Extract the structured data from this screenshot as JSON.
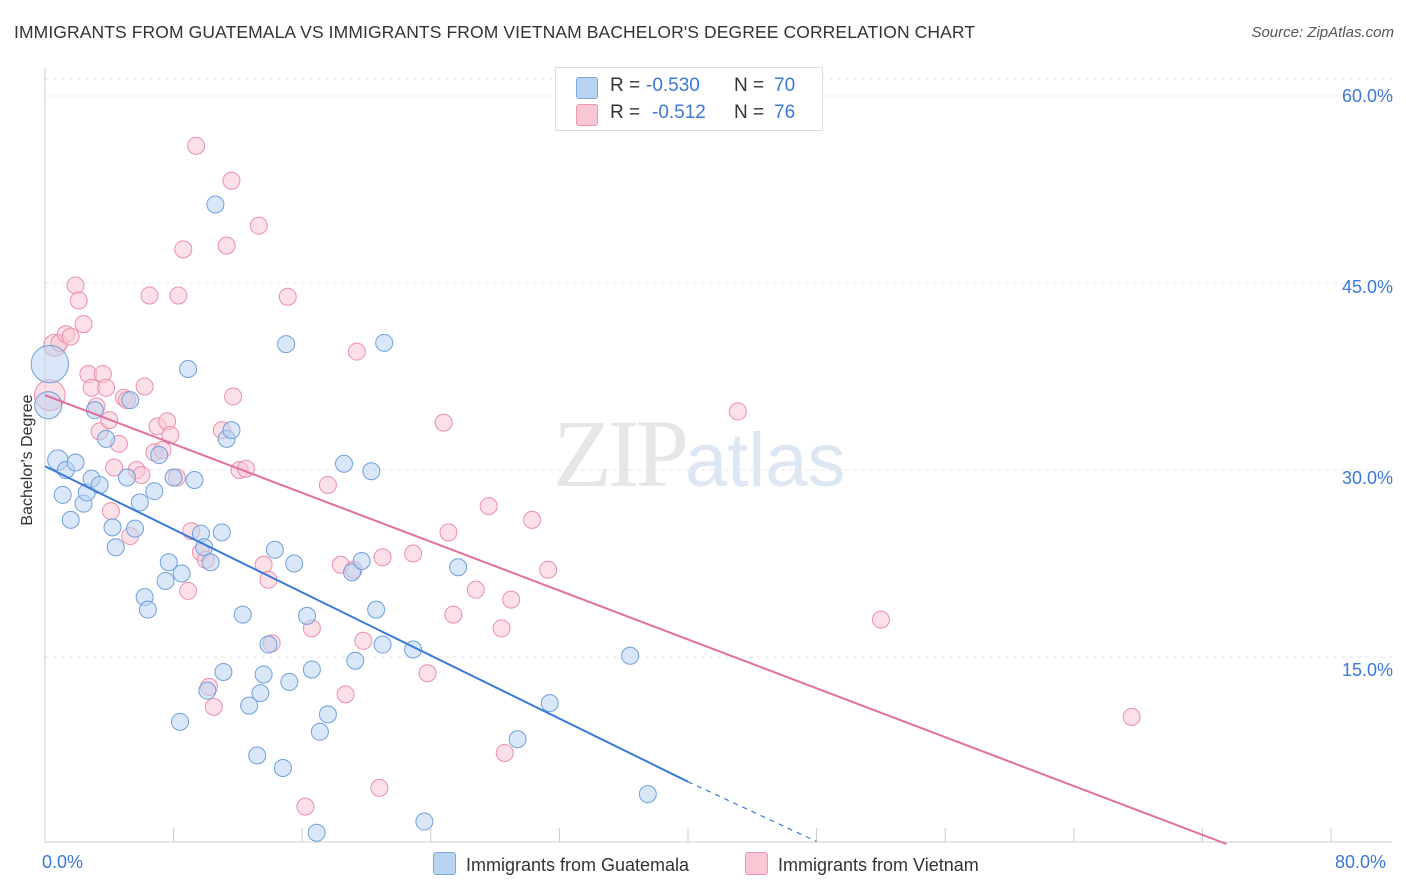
{
  "title": "IMMIGRANTS FROM GUATEMALA VS IMMIGRANTS FROM VIETNAM BACHELOR'S DEGREE CORRELATION CHART",
  "source": "Source: ZipAtlas.com",
  "watermark": {
    "zip": "ZIP",
    "atlas": "atlas"
  },
  "legend_top": {
    "blue": {
      "r_label": "R =",
      "r_value": "-0.530",
      "n_label": "N =",
      "n_value": "70"
    },
    "pink": {
      "r_label": "R =",
      "r_value": "-0.512",
      "n_label": "N =",
      "n_value": "76"
    }
  },
  "colors": {
    "blue_fill": "#b9d3f3",
    "blue_stroke": "#6fa0dc",
    "blue_line": "#3a7bd5",
    "pink_fill": "#f9c6d4",
    "pink_stroke": "#ec8fab",
    "pink_line": "#e0709a",
    "grid": "#e4e4e4",
    "tick_label": "#3c78d8"
  },
  "chart_data": {
    "type": "scatter",
    "title": "IMMIGRANTS FROM GUATEMALA VS IMMIGRANTS FROM VIETNAM BACHELOR'S DEGREE CORRELATION CHART",
    "xlabel": "",
    "ylabel": "Bachelor's Degree",
    "xlim": [
      0,
      80
    ],
    "ylim": [
      0,
      60
    ],
    "x_tick_labels": [
      "0.0%",
      "80.0%"
    ],
    "y_ticks": [
      15,
      30,
      45,
      60
    ],
    "y_tick_labels": [
      "15.0%",
      "30.0%",
      "45.0%",
      "60.0%"
    ],
    "grid": true,
    "legend_position": "bottom",
    "series": [
      {
        "name": "Immigrants from Guatemala",
        "color": "blue",
        "trend": {
          "x0": 0,
          "y0": 30.3,
          "x1": 40,
          "y1": 5.0,
          "dash_to_x": 48,
          "dash_to_y": 0.2
        },
        "points": [
          [
            0.3,
            38.5,
            2.2
          ],
          [
            0.2,
            35.2,
            1.6
          ],
          [
            0.8,
            30.8,
            1.2
          ],
          [
            1.3,
            30.0,
            1.0
          ],
          [
            1.1,
            28.0,
            1.0
          ],
          [
            1.9,
            30.6,
            1.0
          ],
          [
            1.6,
            26.0,
            1.0
          ],
          [
            2.4,
            27.3,
            1.0
          ],
          [
            2.6,
            28.2,
            1.0
          ],
          [
            2.9,
            29.3,
            1.0
          ],
          [
            3.4,
            28.8,
            1.0
          ],
          [
            3.1,
            34.8,
            1.0
          ],
          [
            3.8,
            32.5,
            1.0
          ],
          [
            4.2,
            25.4,
            1.0
          ],
          [
            4.4,
            23.8,
            1.0
          ],
          [
            5.1,
            29.4,
            1.0
          ],
          [
            5.3,
            35.6,
            1.0
          ],
          [
            5.6,
            25.3,
            1.0
          ],
          [
            5.9,
            27.4,
            1.0
          ],
          [
            6.2,
            19.8,
            1.0
          ],
          [
            6.4,
            18.8,
            1.0
          ],
          [
            6.8,
            28.3,
            1.0
          ],
          [
            7.1,
            31.2,
            1.0
          ],
          [
            7.5,
            21.1,
            1.0
          ],
          [
            7.7,
            22.6,
            1.0
          ],
          [
            8.0,
            29.4,
            1.0
          ],
          [
            8.5,
            21.7,
            1.0
          ],
          [
            8.4,
            9.8,
            1.0
          ],
          [
            8.9,
            38.1,
            1.0
          ],
          [
            9.3,
            29.2,
            1.0
          ],
          [
            9.7,
            24.9,
            1.0
          ],
          [
            9.9,
            23.8,
            1.0
          ],
          [
            10.3,
            22.6,
            1.0
          ],
          [
            10.6,
            51.3,
            1.0
          ],
          [
            11.1,
            13.8,
            1.0
          ],
          [
            10.1,
            12.3,
            1.0
          ],
          [
            11.3,
            32.5,
            1.0
          ],
          [
            11.6,
            33.2,
            1.0
          ],
          [
            12.3,
            18.4,
            1.0
          ],
          [
            12.7,
            11.1,
            1.0
          ],
          [
            13.2,
            7.1,
            1.0
          ],
          [
            13.4,
            12.1,
            1.0
          ],
          [
            13.6,
            13.6,
            1.0
          ],
          [
            13.9,
            16.0,
            1.0
          ],
          [
            14.3,
            23.6,
            1.0
          ],
          [
            14.8,
            6.1,
            1.0
          ],
          [
            15.0,
            40.1,
            1.0
          ],
          [
            15.2,
            13.0,
            1.0
          ],
          [
            15.5,
            22.5,
            1.0
          ],
          [
            16.3,
            18.3,
            1.0
          ],
          [
            16.6,
            14.0,
            1.0
          ],
          [
            16.9,
            0.9,
            1.0
          ],
          [
            17.1,
            9.0,
            1.0
          ],
          [
            17.6,
            10.4,
            1.0
          ],
          [
            18.6,
            30.5,
            1.0
          ],
          [
            19.3,
            14.7,
            1.0
          ],
          [
            19.1,
            21.8,
            1.0
          ],
          [
            19.7,
            22.7,
            1.0
          ],
          [
            20.3,
            29.9,
            1.0
          ],
          [
            20.6,
            18.8,
            1.0
          ],
          [
            21.0,
            16.0,
            1.0
          ],
          [
            21.1,
            40.2,
            1.0
          ],
          [
            22.9,
            15.6,
            1.0
          ],
          [
            23.6,
            1.8,
            1.0
          ],
          [
            25.7,
            22.2,
            1.0
          ],
          [
            29.4,
            8.4,
            1.0
          ],
          [
            31.4,
            11.3,
            1.0
          ],
          [
            36.4,
            15.1,
            1.0
          ],
          [
            37.5,
            4.0,
            1.0
          ],
          [
            11.0,
            25.0,
            1.0
          ]
        ]
      },
      {
        "name": "Immigrants from Vietnam",
        "color": "pink",
        "trend": {
          "x0": 0,
          "y0": 36.0,
          "x1": 73.5,
          "y1": 0
        },
        "points": [
          [
            0.3,
            36.0,
            1.8
          ],
          [
            0.6,
            40.0,
            1.3
          ],
          [
            0.9,
            40.2,
            1.0
          ],
          [
            1.3,
            40.9,
            1.0
          ],
          [
            1.6,
            40.7,
            1.0
          ],
          [
            1.9,
            44.8,
            1.0
          ],
          [
            2.1,
            43.6,
            1.0
          ],
          [
            2.4,
            41.7,
            1.0
          ],
          [
            2.7,
            37.7,
            1.0
          ],
          [
            2.9,
            36.6,
            1.0
          ],
          [
            3.2,
            35.1,
            1.0
          ],
          [
            3.4,
            33.1,
            1.0
          ],
          [
            3.6,
            37.7,
            1.0
          ],
          [
            3.8,
            36.6,
            1.0
          ],
          [
            4.1,
            26.7,
            1.0
          ],
          [
            4.3,
            30.2,
            1.0
          ],
          [
            4.6,
            32.1,
            1.0
          ],
          [
            4.9,
            35.8,
            1.0
          ],
          [
            5.1,
            35.6,
            1.0
          ],
          [
            5.3,
            24.7,
            1.0
          ],
          [
            5.7,
            30.0,
            1.0
          ],
          [
            6.0,
            29.6,
            1.0
          ],
          [
            6.2,
            36.7,
            1.0
          ],
          [
            6.5,
            44.0,
            1.0
          ],
          [
            6.8,
            31.4,
            1.0
          ],
          [
            7.0,
            33.5,
            1.0
          ],
          [
            7.3,
            31.6,
            1.0
          ],
          [
            7.6,
            33.9,
            1.0
          ],
          [
            7.8,
            32.8,
            1.0
          ],
          [
            8.2,
            29.4,
            1.0
          ],
          [
            8.3,
            44.0,
            1.0
          ],
          [
            8.6,
            47.7,
            1.0
          ],
          [
            8.9,
            20.3,
            1.0
          ],
          [
            9.1,
            25.1,
            1.0
          ],
          [
            9.4,
            56.0,
            1.0
          ],
          [
            9.7,
            23.4,
            1.0
          ],
          [
            10.0,
            22.8,
            1.0
          ],
          [
            10.2,
            12.6,
            1.0
          ],
          [
            10.5,
            11.0,
            1.0
          ],
          [
            11.0,
            33.2,
            1.0
          ],
          [
            11.3,
            48.0,
            1.0
          ],
          [
            11.6,
            53.2,
            1.0
          ],
          [
            11.7,
            35.9,
            1.0
          ],
          [
            12.1,
            30.0,
            1.0
          ],
          [
            12.5,
            30.1,
            1.0
          ],
          [
            13.3,
            49.6,
            1.0
          ],
          [
            13.6,
            22.4,
            1.0
          ],
          [
            13.9,
            21.2,
            1.0
          ],
          [
            14.1,
            16.1,
            1.0
          ],
          [
            15.1,
            43.9,
            1.0
          ],
          [
            16.2,
            3.0,
            1.0
          ],
          [
            16.6,
            17.3,
            1.0
          ],
          [
            17.6,
            28.8,
            1.0
          ],
          [
            18.4,
            22.4,
            1.0
          ],
          [
            18.7,
            12.0,
            1.0
          ],
          [
            19.2,
            22.0,
            1.0
          ],
          [
            19.4,
            39.5,
            1.0
          ],
          [
            19.8,
            16.3,
            1.0
          ],
          [
            20.8,
            4.5,
            1.0
          ],
          [
            22.9,
            23.3,
            1.0
          ],
          [
            23.8,
            13.7,
            1.0
          ],
          [
            24.8,
            33.8,
            1.0
          ],
          [
            25.1,
            25.0,
            1.0
          ],
          [
            25.4,
            18.4,
            1.0
          ],
          [
            26.8,
            20.4,
            1.0
          ],
          [
            27.6,
            27.1,
            1.0
          ],
          [
            28.4,
            17.3,
            1.0
          ],
          [
            28.6,
            7.3,
            1.0
          ],
          [
            29.0,
            19.6,
            1.0
          ],
          [
            30.3,
            26.0,
            1.0
          ],
          [
            31.3,
            22.0,
            1.0
          ],
          [
            43.1,
            34.7,
            1.0
          ],
          [
            52.0,
            18.0,
            1.0
          ],
          [
            67.6,
            10.2,
            1.0
          ],
          [
            21.0,
            23.0,
            1.0
          ],
          [
            4.0,
            34.0,
            1.0
          ]
        ]
      }
    ]
  },
  "legend_bottom": [
    {
      "label": "Immigrants from Guatemala"
    },
    {
      "label": "Immigrants from Vietnam"
    }
  ]
}
